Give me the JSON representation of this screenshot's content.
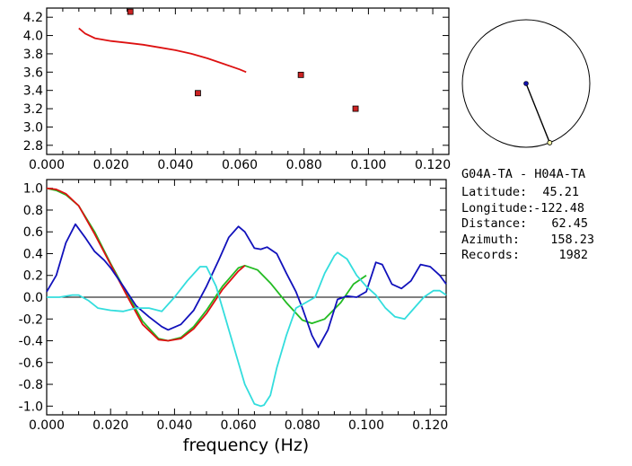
{
  "station_info": {
    "pair": "G04A-TA  -  H04A-TA",
    "rows": [
      {
        "label": "Latitude:",
        "value": "45.21"
      },
      {
        "label": "Longitude:",
        "value": "-122.48"
      },
      {
        "label": "Distance:",
        "value": "62.45"
      },
      {
        "label": "Azimuth:",
        "value": "158.23"
      },
      {
        "label": "Records:",
        "value": "1982"
      }
    ]
  },
  "colors": {
    "red": "#dd1111",
    "green": "#22bb22",
    "blue": "#1111bb",
    "cyan": "#33dddd",
    "marker": "#cc2222",
    "axis": "#000000"
  },
  "chart_data": [
    {
      "type": "scatter",
      "title": "",
      "xlabel": "",
      "ylabel": "",
      "xlim": [
        0,
        0.125
      ],
      "ylim": [
        2.7,
        4.3
      ],
      "xticks": [
        "0.000",
        "0.020",
        "0.040",
        "0.060",
        "0.080",
        "0.100",
        "0.120"
      ],
      "xtick_values": [
        0,
        0.02,
        0.04,
        0.06,
        0.08,
        0.1,
        0.12
      ],
      "yticks": [
        "2.8",
        "3.0",
        "3.2",
        "3.4",
        "3.6",
        "3.8",
        "4.0",
        "4.2"
      ],
      "ytick_values": [
        2.8,
        3.0,
        3.2,
        3.4,
        3.6,
        3.8,
        4.0,
        4.2
      ],
      "points": [
        {
          "x": 0.026,
          "y": 4.26
        },
        {
          "x": 0.047,
          "y": 3.37
        },
        {
          "x": 0.079,
          "y": 3.57
        },
        {
          "x": 0.096,
          "y": 3.2
        }
      ],
      "curve": {
        "color": "red",
        "x": [
          0.01,
          0.012,
          0.015,
          0.02,
          0.025,
          0.03,
          0.035,
          0.04,
          0.045,
          0.05,
          0.055,
          0.06,
          0.062
        ],
        "y": [
          4.08,
          4.02,
          3.97,
          3.94,
          3.92,
          3.9,
          3.87,
          3.84,
          3.8,
          3.75,
          3.69,
          3.63,
          3.6
        ]
      }
    },
    {
      "type": "line",
      "title": "",
      "xlabel": "frequency (Hz)",
      "ylabel": "",
      "xlim": [
        0,
        0.125
      ],
      "ylim": [
        -1.08,
        1.08
      ],
      "xticks": [
        "0.000",
        "0.020",
        "0.040",
        "0.060",
        "0.080",
        "0.100",
        "0.120"
      ],
      "xtick_values": [
        0,
        0.02,
        0.04,
        0.06,
        0.08,
        0.1,
        0.12
      ],
      "yticks": [
        "1.0",
        "0.8",
        "0.6",
        "0.4",
        "0.2",
        "0.0",
        "-0.2",
        "-0.4",
        "-0.6",
        "-0.8",
        "-1.0"
      ],
      "ytick_values": [
        1.0,
        0.8,
        0.6,
        0.4,
        0.2,
        0.0,
        -0.2,
        -0.4,
        -0.6,
        -0.8,
        -1.0
      ],
      "zero_line": true,
      "series": [
        {
          "color": "green",
          "x": [
            0.0,
            0.003,
            0.006,
            0.01,
            0.015,
            0.02,
            0.025,
            0.03,
            0.035,
            0.038,
            0.042,
            0.046,
            0.05,
            0.055,
            0.06,
            0.062,
            0.066,
            0.07,
            0.075,
            0.08,
            0.083,
            0.087,
            0.092,
            0.096,
            0.1
          ],
          "y": [
            1.0,
            0.98,
            0.94,
            0.84,
            0.6,
            0.31,
            0.04,
            -0.22,
            -0.38,
            -0.4,
            -0.37,
            -0.27,
            -0.12,
            0.1,
            0.27,
            0.29,
            0.25,
            0.13,
            -0.05,
            -0.21,
            -0.24,
            -0.2,
            -0.05,
            0.12,
            0.2
          ]
        },
        {
          "color": "red",
          "x": [
            0.0,
            0.003,
            0.006,
            0.01,
            0.015,
            0.02,
            0.025,
            0.03,
            0.035,
            0.038,
            0.042,
            0.046,
            0.05,
            0.055,
            0.06,
            0.062
          ],
          "y": [
            1.0,
            0.99,
            0.95,
            0.84,
            0.58,
            0.3,
            0.02,
            -0.25,
            -0.39,
            -0.4,
            -0.38,
            -0.29,
            -0.15,
            0.07,
            0.24,
            0.29
          ]
        },
        {
          "color": "blue",
          "x": [
            0.0,
            0.003,
            0.006,
            0.009,
            0.012,
            0.015,
            0.018,
            0.02,
            0.024,
            0.028,
            0.032,
            0.036,
            0.038,
            0.042,
            0.046,
            0.05,
            0.054,
            0.057,
            0.06,
            0.062,
            0.065,
            0.067,
            0.069,
            0.072,
            0.075,
            0.078,
            0.08,
            0.083,
            0.085,
            0.088,
            0.091,
            0.094,
            0.097,
            0.1,
            0.103,
            0.105,
            0.108,
            0.111,
            0.114,
            0.117,
            0.12,
            0.123,
            0.125
          ],
          "y": [
            0.05,
            0.2,
            0.5,
            0.67,
            0.55,
            0.42,
            0.34,
            0.27,
            0.1,
            -0.08,
            -0.18,
            -0.27,
            -0.3,
            -0.25,
            -0.12,
            0.1,
            0.35,
            0.55,
            0.65,
            0.6,
            0.45,
            0.44,
            0.46,
            0.4,
            0.22,
            0.05,
            -0.1,
            -0.35,
            -0.46,
            -0.3,
            -0.02,
            0.01,
            0.0,
            0.05,
            0.32,
            0.3,
            0.12,
            0.08,
            0.15,
            0.3,
            0.28,
            0.2,
            0.12
          ]
        },
        {
          "color": "cyan",
          "x": [
            0.0,
            0.004,
            0.008,
            0.01,
            0.013,
            0.016,
            0.02,
            0.024,
            0.028,
            0.032,
            0.036,
            0.04,
            0.044,
            0.048,
            0.05,
            0.053,
            0.056,
            0.059,
            0.062,
            0.065,
            0.067,
            0.068,
            0.07,
            0.072,
            0.075,
            0.078,
            0.081,
            0.084,
            0.087,
            0.09,
            0.091,
            0.094,
            0.097,
            0.1,
            0.103,
            0.106,
            0.109,
            0.112,
            0.115,
            0.118,
            0.121,
            0.123,
            0.125
          ],
          "y": [
            0.0,
            0.0,
            0.02,
            0.02,
            -0.03,
            -0.1,
            -0.12,
            -0.13,
            -0.1,
            -0.1,
            -0.13,
            0.0,
            0.15,
            0.28,
            0.28,
            0.1,
            -0.2,
            -0.5,
            -0.8,
            -0.98,
            -1.0,
            -0.99,
            -0.9,
            -0.65,
            -0.35,
            -0.1,
            -0.05,
            0.0,
            0.22,
            0.38,
            0.41,
            0.35,
            0.2,
            0.1,
            0.02,
            -0.1,
            -0.18,
            -0.2,
            -0.1,
            0.0,
            0.06,
            0.06,
            0.02
          ]
        }
      ]
    },
    {
      "type": "scatter",
      "title": "",
      "xlabel": "",
      "ylabel": "",
      "note": "azimuth dial: unit circle, line from center at the given azimuth",
      "azimuth_deg": 158.23
    }
  ]
}
